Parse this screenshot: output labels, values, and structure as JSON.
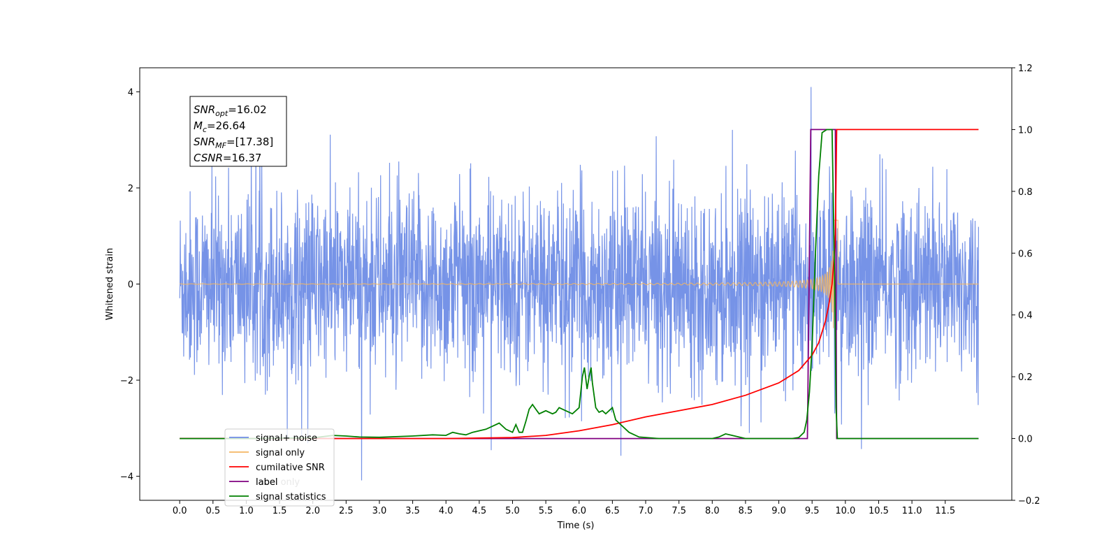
{
  "chart_data": {
    "type": "line",
    "title": "",
    "xlabel": "Time (s)",
    "ylabel": "Whitened strain",
    "xlim": [
      -0.6,
      12.5
    ],
    "ylim": [
      -4.5,
      4.5
    ],
    "y2lim": [
      -0.2,
      1.2
    ],
    "x_ticks": [
      0.0,
      0.5,
      1.0,
      1.5,
      2.0,
      2.5,
      3.0,
      3.5,
      4.0,
      4.5,
      5.0,
      5.5,
      6.0,
      6.5,
      7.0,
      7.5,
      8.0,
      8.5,
      9.0,
      9.5,
      10.0,
      10.5,
      11.0,
      11.5
    ],
    "x_tick_labels": [
      "0.0",
      "0.5",
      "1.0",
      "1.5",
      "2.0",
      "2.5",
      "3.0",
      "3.5",
      "4.0",
      "4.5",
      "5.0",
      "5.5",
      "6.0",
      "6.5",
      "7.0",
      "7.5",
      "8.0",
      "8.5",
      "9.0",
      "9.5",
      "10.0",
      "10.5",
      "11.0",
      "11.5"
    ],
    "y_ticks": [
      -4,
      -2,
      0,
      2,
      4
    ],
    "y_tick_labels": [
      "−4",
      "−2",
      "0",
      "2",
      "4"
    ],
    "y2_ticks": [
      -0.2,
      0.0,
      0.2,
      0.4,
      0.6,
      0.8,
      1.0,
      1.2
    ],
    "y2_tick_labels": [
      "−0.2",
      "0.0",
      "0.2",
      "0.4",
      "0.6",
      "0.8",
      "1.0",
      "1.2"
    ],
    "grid": false,
    "legend_position": "lower-left",
    "series": [
      {
        "name": "signal+ noise",
        "color": "#6f8de6",
        "axis": "left",
        "x_range": [
          0.0,
          12.0
        ],
        "noise_envelope": [
          -2.3,
          2.3
        ],
        "peak_range": [
          -4.1,
          4.1
        ]
      },
      {
        "name": "signal only",
        "color": "#f5b662",
        "axis": "left",
        "x_range": [
          0.0,
          12.0
        ],
        "chirp_peak_time": 9.85,
        "chirp_peak_amplitude": 1.8
      },
      {
        "name": "cumilative SNR",
        "color": "#ff0000",
        "axis": "right",
        "x": [
          0.0,
          4.0,
          5.0,
          5.5,
          6.0,
          6.5,
          7.0,
          7.5,
          8.0,
          8.5,
          9.0,
          9.3,
          9.5,
          9.6,
          9.7,
          9.75,
          9.8,
          9.83,
          9.85,
          9.87,
          12.0
        ],
        "y": [
          0.0,
          0.0,
          0.003,
          0.01,
          0.025,
          0.045,
          0.07,
          0.09,
          0.11,
          0.14,
          0.18,
          0.22,
          0.27,
          0.31,
          0.38,
          0.43,
          0.5,
          0.58,
          0.66,
          1.0,
          1.0
        ]
      },
      {
        "name": "label",
        "color": "#800080",
        "axis": "right",
        "x": [
          0.0,
          9.43,
          9.48,
          9.85,
          9.87,
          12.0
        ],
        "y": [
          0.0,
          0.0,
          1.0,
          1.0,
          0.0,
          0.0
        ]
      },
      {
        "name": "label only",
        "color": "#f2f2f2",
        "axis": "right",
        "x": [],
        "y": []
      },
      {
        "name": "signal statistics",
        "color": "#008000",
        "axis": "right",
        "x": [
          0.0,
          1.0,
          2.0,
          2.3,
          2.5,
          2.7,
          3.0,
          3.5,
          3.8,
          4.0,
          4.1,
          4.2,
          4.3,
          4.4,
          4.5,
          4.6,
          4.7,
          4.8,
          4.9,
          5.0,
          5.05,
          5.1,
          5.15,
          5.2,
          5.25,
          5.3,
          5.35,
          5.4,
          5.45,
          5.5,
          5.6,
          5.65,
          5.7,
          5.8,
          5.9,
          6.0,
          6.05,
          6.08,
          6.12,
          6.15,
          6.18,
          6.2,
          6.25,
          6.3,
          6.35,
          6.4,
          6.45,
          6.5,
          6.55,
          6.65,
          6.75,
          6.9,
          7.2,
          7.5,
          8.0,
          8.1,
          8.2,
          8.3,
          8.5,
          9.0,
          9.2,
          9.3,
          9.38,
          9.42,
          9.46,
          9.5,
          9.55,
          9.6,
          9.65,
          9.72,
          9.8,
          9.84,
          9.86,
          9.88,
          12.0
        ],
        "y": [
          0.0,
          0.0,
          0.002,
          0.01,
          0.008,
          0.005,
          0.004,
          0.008,
          0.012,
          0.01,
          0.02,
          0.015,
          0.012,
          0.02,
          0.025,
          0.03,
          0.04,
          0.05,
          0.03,
          0.02,
          0.045,
          0.02,
          0.02,
          0.055,
          0.095,
          0.11,
          0.095,
          0.08,
          0.085,
          0.09,
          0.08,
          0.085,
          0.1,
          0.09,
          0.08,
          0.1,
          0.2,
          0.23,
          0.16,
          0.2,
          0.23,
          0.18,
          0.1,
          0.085,
          0.09,
          0.08,
          0.09,
          0.1,
          0.06,
          0.04,
          0.02,
          0.005,
          0.0,
          0.0,
          0.0,
          0.005,
          0.015,
          0.01,
          0.0,
          0.0,
          0.0,
          0.003,
          0.02,
          0.06,
          0.15,
          0.3,
          0.6,
          0.85,
          0.99,
          1.0,
          1.0,
          0.5,
          0.1,
          0.0,
          0.0
        ]
      }
    ]
  },
  "annotation": {
    "lines": [
      {
        "base": "SNR",
        "sub": "opt",
        "value": "=16.02"
      },
      {
        "base": "M",
        "sub": "c",
        "value": "=26.64"
      },
      {
        "base": "SNR",
        "sub": "MF",
        "value": "=[17.38]"
      },
      {
        "base": "CSNR",
        "sub": "",
        "value": "=16.37"
      }
    ]
  }
}
